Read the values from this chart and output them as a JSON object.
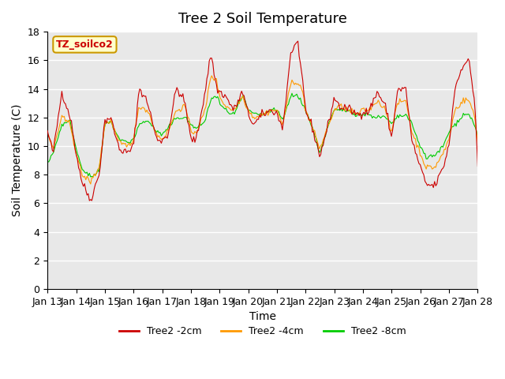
{
  "title": "Tree 2 Soil Temperature",
  "xlabel": "Time",
  "ylabel": "Soil Temperature (C)",
  "ylim": [
    0,
    18
  ],
  "yticks": [
    0,
    2,
    4,
    6,
    8,
    10,
    12,
    14,
    16,
    18
  ],
  "xtick_labels": [
    "Jan 13",
    "Jan 14",
    "Jan 15",
    "Jan 16",
    "Jan 17",
    "Jan 18",
    "Jan 19",
    "Jan 20",
    "Jan 21",
    "Jan 22",
    "Jan 23",
    "Jan 24",
    "Jan 25",
    "Jan 26",
    "Jan 27",
    "Jan 28"
  ],
  "line_colors": [
    "#cc0000",
    "#ff9900",
    "#00cc00"
  ],
  "line_labels": [
    "Tree2 -2cm",
    "Tree2 -4cm",
    "Tree2 -8cm"
  ],
  "legend_label": "TZ_soilco2",
  "legend_label_color": "#cc0000",
  "legend_bg": "#ffffcc",
  "legend_border": "#cc9900",
  "background_color": "#ffffff",
  "plot_bg_color": "#e8e8e8",
  "grid_color": "#ffffff",
  "title_fontsize": 13,
  "axis_fontsize": 10,
  "tick_fontsize": 9,
  "n_points": 360,
  "seed": 42
}
